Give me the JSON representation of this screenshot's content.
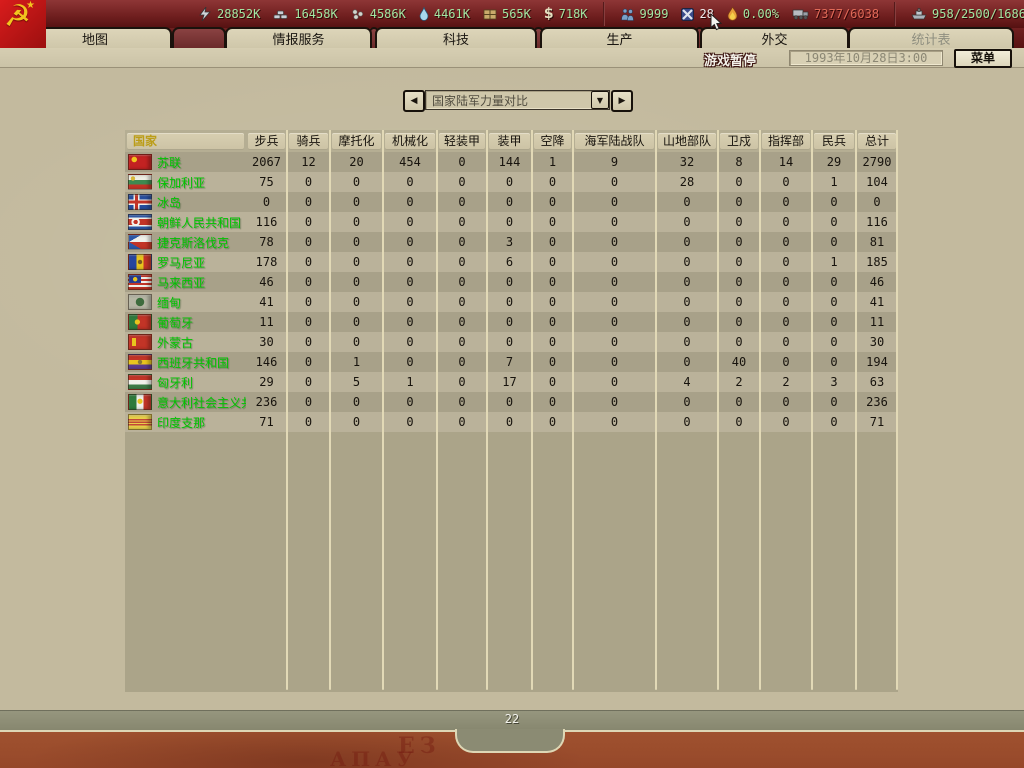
{
  "topbar": {
    "resources": [
      {
        "id": "energy",
        "icon": "energy-icon",
        "value": "28852K"
      },
      {
        "id": "metal",
        "icon": "metal-icon",
        "value": "16458K"
      },
      {
        "id": "rare-materials",
        "icon": "rare-materials-icon",
        "value": "4586K"
      },
      {
        "id": "oil",
        "icon": "oil-icon",
        "value": "4461K"
      },
      {
        "id": "supplies",
        "icon": "supplies-icon",
        "value": "565K"
      },
      {
        "id": "money",
        "icon": "money-icon",
        "value": "718K"
      },
      {
        "id": "manpower",
        "icon": "manpower-icon",
        "value": "9999",
        "separator_before": true
      },
      {
        "id": "transports",
        "icon": "transports-icon",
        "value": "28",
        "value_color": "#ececec"
      },
      {
        "id": "dissent",
        "icon": "dissent-icon",
        "value": "0.00%"
      },
      {
        "id": "transport-capacity",
        "icon": "truck-icon",
        "value": "7377/6038",
        "value_color": "#e06a58"
      },
      {
        "id": "convoys",
        "icon": "convoy-icon",
        "value": "958/2500/1686",
        "separator_before": true
      }
    ]
  },
  "tabs": [
    {
      "id": "map",
      "label": "地图"
    },
    {
      "id": "intelligence",
      "label": "情报服务"
    },
    {
      "id": "technology",
      "label": "科技"
    },
    {
      "id": "production",
      "label": "生产"
    },
    {
      "id": "diplomacy",
      "label": "外交"
    },
    {
      "id": "statistics",
      "label": "统计表",
      "disabled": true
    }
  ],
  "statusbar": {
    "paused_label": "游戏暂停",
    "date": "1993年10月28日3:00",
    "menu_label": "菜单"
  },
  "nav": {
    "selected_view": "国家陆军力量对比"
  },
  "table": {
    "headers": [
      "国家",
      "步兵",
      "骑兵",
      "摩托化",
      "机械化",
      "轻装甲",
      "装甲",
      "空降",
      "海军陆战队",
      "山地部队",
      "卫戍",
      "指挥部",
      "民兵",
      "总计"
    ],
    "rows": [
      {
        "country": "苏联",
        "flag": "ussr",
        "values": [
          2067,
          12,
          20,
          454,
          0,
          144,
          1,
          9,
          32,
          8,
          14,
          29,
          2790
        ]
      },
      {
        "country": "保加利亚",
        "flag": "bulgaria",
        "values": [
          75,
          0,
          0,
          0,
          0,
          0,
          0,
          0,
          28,
          0,
          0,
          1,
          104
        ]
      },
      {
        "country": "冰岛",
        "flag": "iceland",
        "values": [
          0,
          0,
          0,
          0,
          0,
          0,
          0,
          0,
          0,
          0,
          0,
          0,
          0
        ]
      },
      {
        "country": "朝鲜人民共和国",
        "flag": "north-korea",
        "values": [
          116,
          0,
          0,
          0,
          0,
          0,
          0,
          0,
          0,
          0,
          0,
          0,
          116
        ]
      },
      {
        "country": "捷克斯洛伐克",
        "flag": "czechoslovakia",
        "values": [
          78,
          0,
          0,
          0,
          0,
          3,
          0,
          0,
          0,
          0,
          0,
          0,
          81
        ]
      },
      {
        "country": "罗马尼亚",
        "flag": "romania",
        "values": [
          178,
          0,
          0,
          0,
          0,
          6,
          0,
          0,
          0,
          0,
          0,
          1,
          185
        ]
      },
      {
        "country": "马来西亚",
        "flag": "malaysia",
        "values": [
          46,
          0,
          0,
          0,
          0,
          0,
          0,
          0,
          0,
          0,
          0,
          0,
          46
        ]
      },
      {
        "country": "缅甸",
        "flag": "myanmar",
        "values": [
          41,
          0,
          0,
          0,
          0,
          0,
          0,
          0,
          0,
          0,
          0,
          0,
          41
        ]
      },
      {
        "country": "葡萄牙",
        "flag": "portugal",
        "values": [
          11,
          0,
          0,
          0,
          0,
          0,
          0,
          0,
          0,
          0,
          0,
          0,
          11
        ]
      },
      {
        "country": "外蒙古",
        "flag": "mongolia",
        "values": [
          30,
          0,
          0,
          0,
          0,
          0,
          0,
          0,
          0,
          0,
          0,
          0,
          30
        ]
      },
      {
        "country": "西班牙共和国",
        "flag": "spanish-republic",
        "values": [
          146,
          0,
          1,
          0,
          0,
          7,
          0,
          0,
          0,
          40,
          0,
          0,
          194
        ]
      },
      {
        "country": "匈牙利",
        "flag": "hungary",
        "values": [
          29,
          0,
          5,
          1,
          0,
          17,
          0,
          0,
          4,
          2,
          2,
          3,
          63
        ]
      },
      {
        "country": "意大利社会主义共和国",
        "flag": "italy-socialist",
        "values": [
          236,
          0,
          0,
          0,
          0,
          0,
          0,
          0,
          0,
          0,
          0,
          0,
          236
        ]
      },
      {
        "country": "印度支那",
        "flag": "indochina",
        "values": [
          71,
          0,
          0,
          0,
          0,
          0,
          0,
          0,
          0,
          0,
          0,
          0,
          71
        ]
      }
    ]
  },
  "footer": {
    "page_label": "22",
    "poster_fragments": [
      "ЕЗ",
      "АПАУ"
    ]
  },
  "colors": {
    "country_name_green": "#00c400",
    "header_gold": "#bb9d17",
    "resource_value_green": "#a2e6a2",
    "transport_capacity_red": "#e06a58",
    "topbar_red": "#712020",
    "panel_tan": "#c3ba9e"
  }
}
